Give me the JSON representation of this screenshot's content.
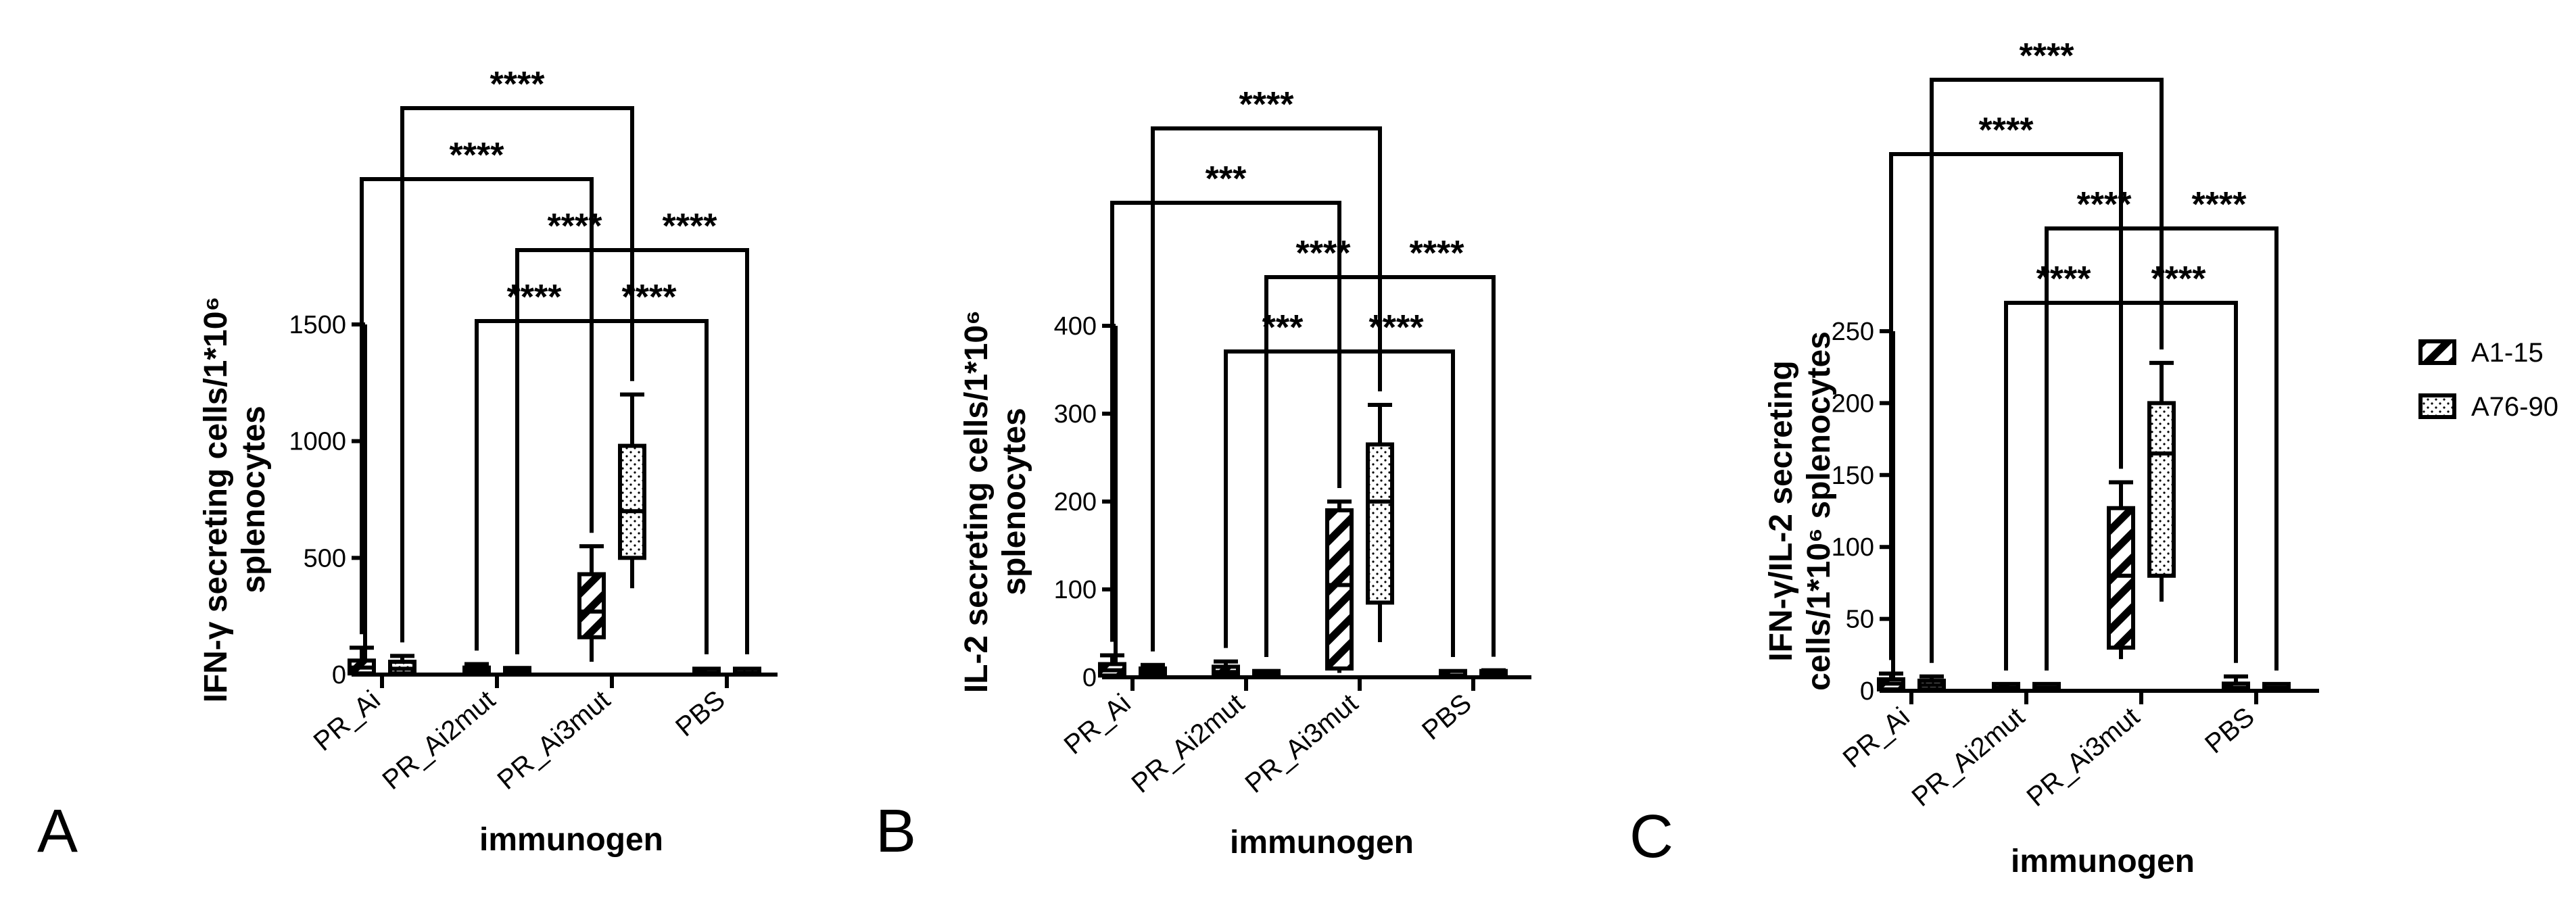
{
  "legend": [
    {
      "name": "A1-15",
      "pattern": "hatch"
    },
    {
      "name": "A76-90",
      "pattern": "dots"
    }
  ],
  "chart_data": [
    {
      "type": "box",
      "panel": "A",
      "xlabel": "immunogen",
      "ylabel_lines": [
        "IFN-γ secreting cells/1*10⁶",
        "splenocytes"
      ],
      "ylim": [
        0,
        1500
      ],
      "yticks": [
        0,
        500,
        1000,
        1500
      ],
      "categories": [
        "PR_Ai",
        "PR_Ai2mut",
        "PR_Ai3mut",
        "PBS"
      ],
      "series": [
        {
          "name": "A1-15",
          "pattern": "hatch",
          "boxes": [
            {
              "min": 0,
              "q1": 5,
              "median": 30,
              "q3": 60,
              "max": 115
            },
            {
              "min": 0,
              "q1": 5,
              "median": 15,
              "q3": 30,
              "max": 45
            },
            {
              "min": 55,
              "q1": 160,
              "median": 270,
              "q3": 430,
              "max": 550
            },
            {
              "min": 0,
              "q1": 2,
              "median": 8,
              "q3": 15,
              "max": 22
            }
          ]
        },
        {
          "name": "A76-90",
          "pattern": "dots",
          "boxes": [
            {
              "min": 0,
              "q1": 5,
              "median": 25,
              "q3": 55,
              "max": 80
            },
            {
              "min": 0,
              "q1": 5,
              "median": 15,
              "q3": 22,
              "max": 28
            },
            {
              "min": 370,
              "q1": 500,
              "median": 700,
              "q3": 980,
              "max": 1200
            },
            {
              "min": 0,
              "q1": 2,
              "median": 8,
              "q3": 15,
              "max": 20
            }
          ]
        }
      ],
      "comparisons": [
        {
          "from": [
            0,
            0
          ],
          "to": [
            2,
            0
          ],
          "label": "****",
          "level": 1
        },
        {
          "from": [
            0,
            1
          ],
          "to": [
            2,
            1
          ],
          "label": "****",
          "level": 2
        },
        {
          "from": [
            1,
            1
          ],
          "to": [
            2,
            1
          ],
          "label": "****",
          "level": -2
        },
        {
          "from": [
            2,
            1
          ],
          "to": [
            3,
            1
          ],
          "label": "****",
          "level": -2
        },
        {
          "from": [
            1,
            0
          ],
          "to": [
            2,
            0
          ],
          "label": "****",
          "level": -1
        },
        {
          "from": [
            2,
            0
          ],
          "to": [
            3,
            0
          ],
          "label": "****",
          "level": -1
        }
      ]
    },
    {
      "type": "box",
      "panel": "B",
      "xlabel": "immunogen",
      "ylabel_lines": [
        "IL-2 secreting cells/1*10⁶",
        "splenocytes"
      ],
      "ylim": [
        0,
        400
      ],
      "yticks": [
        0,
        100,
        200,
        300,
        400
      ],
      "categories": [
        "PR_Ai",
        "PR_Ai2mut",
        "PR_Ai3mut",
        "PBS"
      ],
      "series": [
        {
          "name": "A1-15",
          "pattern": "hatch",
          "boxes": [
            {
              "min": 0,
              "q1": 2,
              "median": 8,
              "q3": 15,
              "max": 25
            },
            {
              "min": 0,
              "q1": 2,
              "median": 6,
              "q3": 12,
              "max": 18
            },
            {
              "min": 5,
              "q1": 10,
              "median": 105,
              "q3": 190,
              "max": 200
            },
            {
              "min": 0,
              "q1": 1,
              "median": 2,
              "q3": 5,
              "max": 6
            }
          ]
        },
        {
          "name": "A76-90",
          "pattern": "dots",
          "boxes": [
            {
              "min": 0,
              "q1": 2,
              "median": 6,
              "q3": 10,
              "max": 14
            },
            {
              "min": 0,
              "q1": 1,
              "median": 3,
              "q3": 5,
              "max": 7
            },
            {
              "min": 40,
              "q1": 85,
              "median": 200,
              "q3": 265,
              "max": 310
            },
            {
              "min": 0,
              "q1": 1,
              "median": 3,
              "q3": 6,
              "max": 8
            }
          ]
        }
      ],
      "comparisons": [
        {
          "from": [
            0,
            0
          ],
          "to": [
            2,
            0
          ],
          "label": "***",
          "level": 1
        },
        {
          "from": [
            0,
            1
          ],
          "to": [
            2,
            1
          ],
          "label": "****",
          "level": 2
        },
        {
          "from": [
            1,
            1
          ],
          "to": [
            2,
            1
          ],
          "label": "****",
          "level": -2
        },
        {
          "from": [
            2,
            1
          ],
          "to": [
            3,
            1
          ],
          "label": "****",
          "level": -2
        },
        {
          "from": [
            1,
            0
          ],
          "to": [
            2,
            0
          ],
          "label": "***",
          "level": -1
        },
        {
          "from": [
            2,
            0
          ],
          "to": [
            3,
            0
          ],
          "label": "****",
          "level": -1
        }
      ]
    },
    {
      "type": "box",
      "panel": "C",
      "xlabel": "immunogen",
      "ylabel_lines": [
        "IFN-γ/IL-2 secreting",
        "cells/1*10⁶ splenocytes"
      ],
      "ylim": [
        0,
        250
      ],
      "yticks": [
        0,
        50,
        100,
        150,
        200,
        250
      ],
      "categories": [
        "PR_Ai",
        "PR_Ai2mut",
        "PR_Ai3mut",
        "PBS"
      ],
      "series": [
        {
          "name": "A1-15",
          "pattern": "hatch",
          "boxes": [
            {
              "min": 0,
              "q1": 1,
              "median": 5,
              "q3": 8,
              "max": 12
            },
            {
              "min": 0,
              "q1": 1,
              "median": 2,
              "q3": 3,
              "max": 4
            },
            {
              "min": 22,
              "q1": 30,
              "median": 80,
              "q3": 127,
              "max": 145
            },
            {
              "min": 0,
              "q1": 1,
              "median": 2,
              "q3": 5,
              "max": 10
            }
          ]
        },
        {
          "name": "A76-90",
          "pattern": "dots",
          "boxes": [
            {
              "min": 0,
              "q1": 1,
              "median": 4,
              "q3": 7,
              "max": 10
            },
            {
              "min": 0,
              "q1": 1,
              "median": 2,
              "q3": 3,
              "max": 4
            },
            {
              "min": 62,
              "q1": 80,
              "median": 165,
              "q3": 200,
              "max": 228
            },
            {
              "min": 0,
              "q1": 1,
              "median": 2,
              "q3": 3,
              "max": 4
            }
          ]
        }
      ],
      "comparisons": [
        {
          "from": [
            0,
            0
          ],
          "to": [
            2,
            0
          ],
          "label": "****",
          "level": 3
        },
        {
          "from": [
            0,
            1
          ],
          "to": [
            2,
            1
          ],
          "label": "****",
          "level": 4
        },
        {
          "from": [
            1,
            1
          ],
          "to": [
            2,
            1
          ],
          "label": "****",
          "level": -2
        },
        {
          "from": [
            2,
            1
          ],
          "to": [
            3,
            1
          ],
          "label": "****",
          "level": -2
        },
        {
          "from": [
            1,
            0
          ],
          "to": [
            2,
            0
          ],
          "label": "****",
          "level": -1
        },
        {
          "from": [
            2,
            0
          ],
          "to": [
            3,
            0
          ],
          "label": "****",
          "level": -1
        }
      ]
    }
  ]
}
